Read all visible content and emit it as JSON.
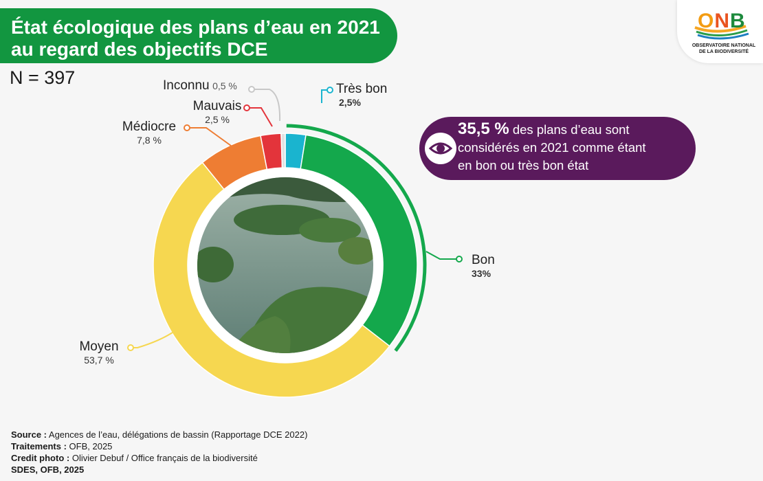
{
  "title_line1": "État écologique des plans d’eau en 2021",
  "title_line2": "au regard des objectifs DCE",
  "n_label": "N = 397",
  "logo": {
    "word": "ONB",
    "subtitle_1": "OBSERVATOIRE NATIONAL",
    "subtitle_2": "DE LA BIODIVERSITÉ"
  },
  "callout": {
    "highlight": "35,5 %",
    "line1": " des plans d’eau sont",
    "line2": "considérés en 2021 comme étant",
    "line3": "en bon ou très bon état",
    "icon": "eye-icon",
    "color": "#5a1a5c"
  },
  "chart_data": {
    "type": "pie",
    "donut": true,
    "categories": [
      "Très bon",
      "Bon",
      "Moyen",
      "Médiocre",
      "Mauvais",
      "Inconnu"
    ],
    "values": [
      2.5,
      33,
      53.7,
      7.8,
      2.5,
      0.5
    ],
    "value_labels": [
      "2,5%",
      "33%",
      "53,7 %",
      "7,8 %",
      "2,5 %",
      "0,5 %"
    ],
    "colors": [
      "#1ab4cf",
      "#14a84c",
      "#f6d750",
      "#ee7d33",
      "#e3343b",
      "#e2e2e2"
    ]
  },
  "footer": {
    "source_label": "Source :",
    "source_text": " Agences de l’eau, délégations de bassin (Rapportage DCE 2022)",
    "treat_label": "Traitements :",
    "treat_text": " OFB, 2025",
    "credit_label": "Credit photo :",
    "credit_text": " Olivier Debuf / Office français de la biodiversité",
    "producer": "SDES, OFB, 2025"
  }
}
